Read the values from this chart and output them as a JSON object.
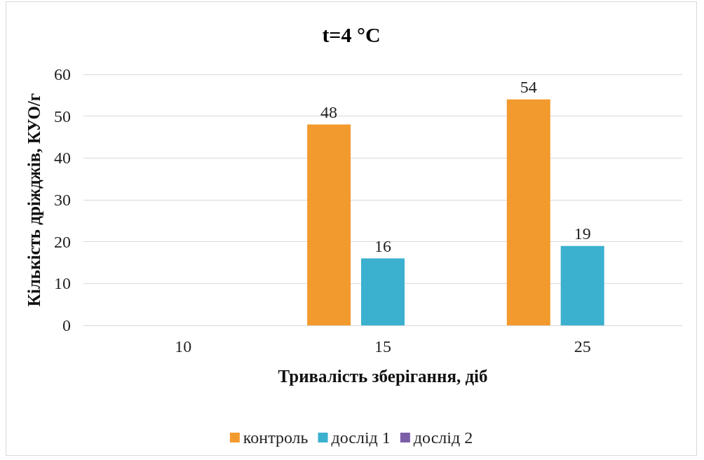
{
  "chart_data": {
    "type": "bar",
    "title": "t=4 °C",
    "xlabel": "Тривалість зберігання, діб",
    "ylabel": "Кількість дріжджів, КУО/г",
    "categories": [
      "10",
      "15",
      "25"
    ],
    "series": [
      {
        "name": "контроль",
        "color": "#f39a2e",
        "values": [
          null,
          48,
          54
        ]
      },
      {
        "name": "дослід 1",
        "color": "#3bb0cf",
        "values": [
          null,
          16,
          19
        ]
      },
      {
        "name": "дослід 2",
        "color": "#7b5ea7",
        "values": [
          null,
          null,
          null
        ]
      }
    ],
    "ylim": [
      0,
      60
    ],
    "yticks": [
      0,
      10,
      20,
      30,
      40,
      50,
      60
    ],
    "grid": "y",
    "legend": "bottom",
    "data_labels": true
  }
}
